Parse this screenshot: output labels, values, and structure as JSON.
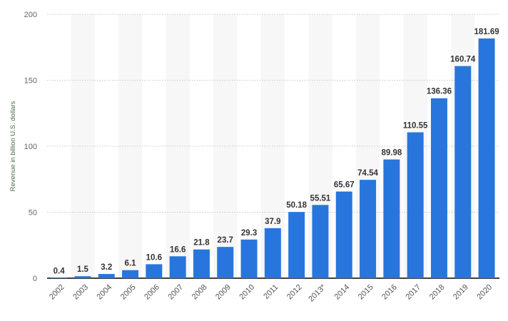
{
  "chart_data": {
    "type": "bar",
    "title": "",
    "xlabel": "",
    "ylabel": "Revenue in billion U.S. dollars",
    "ylim": [
      0,
      200
    ],
    "yticks": [
      0,
      50,
      100,
      150,
      200
    ],
    "grid": true,
    "categories": [
      "2002",
      "2003",
      "2004",
      "2005",
      "2006",
      "2007",
      "2008",
      "2009",
      "2010",
      "2011",
      "2012",
      "2013*",
      "2014",
      "2015",
      "2016",
      "2017",
      "2018",
      "2019",
      "2020"
    ],
    "values": [
      0.4,
      1.5,
      3.2,
      6.1,
      10.6,
      16.6,
      21.8,
      23.7,
      29.3,
      37.9,
      50.18,
      55.51,
      65.67,
      74.54,
      89.98,
      110.55,
      136.36,
      160.74,
      181.69
    ],
    "data_labels": [
      "0.4",
      "1.5",
      "3.2",
      "6.1",
      "10.6",
      "16.6",
      "21.8",
      "23.7",
      "29.3",
      "37.9",
      "50.18",
      "55.51",
      "65.67",
      "74.54",
      "89.98",
      "110.55",
      "136.36",
      "160.74",
      "181.69"
    ],
    "colors": {
      "bar": "#2876dd",
      "stripe": "#f7f7f7",
      "grid": "#c8c8c8",
      "axis": "#000000"
    }
  }
}
